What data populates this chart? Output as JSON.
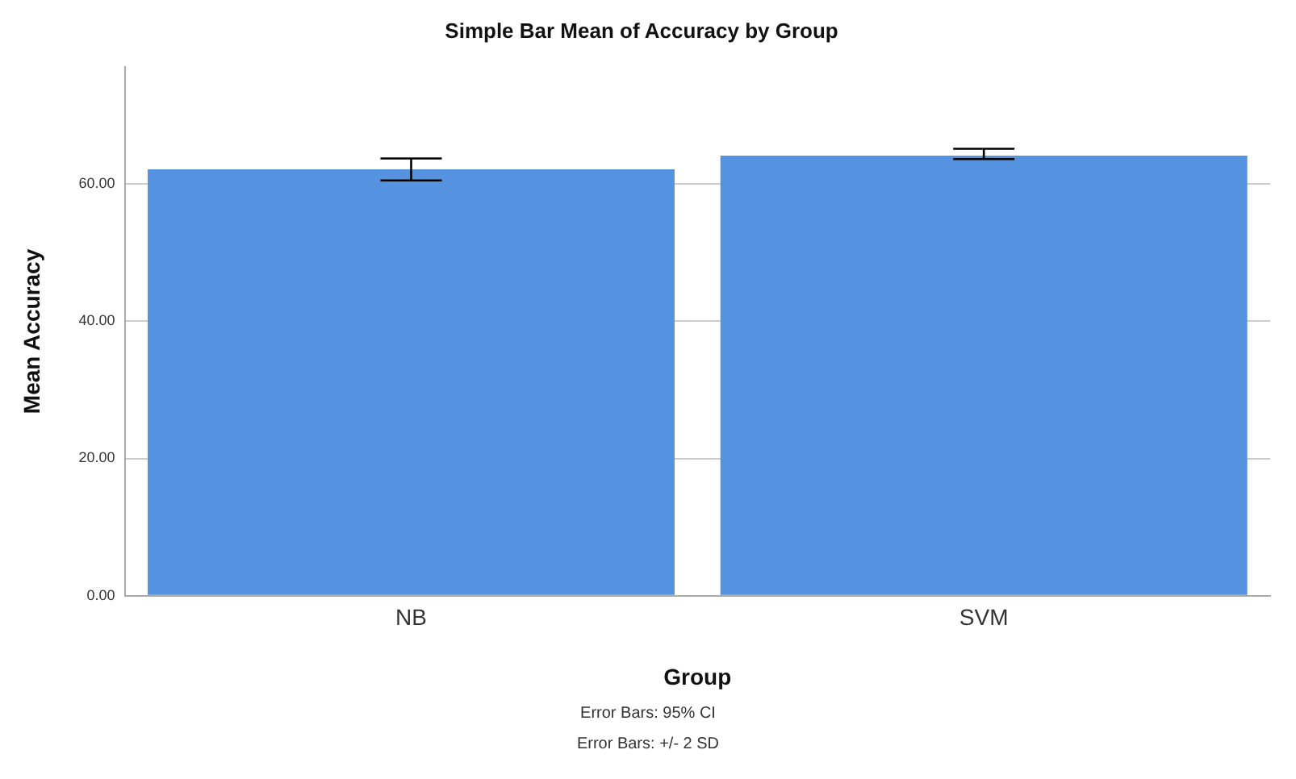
{
  "chart_data": {
    "type": "bar",
    "title": "Simple Bar Mean of Accuracy by Group",
    "xlabel": "Group",
    "ylabel": "Mean Accuracy",
    "categories": [
      "NB",
      "SVM"
    ],
    "values": [
      62.1,
      64.1
    ],
    "errors": [
      [
        60.5,
        63.7
      ],
      [
        63.6,
        65.1
      ]
    ],
    "color": "#5592e0",
    "ylim": [
      0,
      77
    ],
    "yticks": [
      {
        "value": 0,
        "label": "0.00"
      },
      {
        "value": 20,
        "label": "20.00"
      },
      {
        "value": 40,
        "label": "40.00"
      },
      {
        "value": 60,
        "label": "60.00"
      }
    ],
    "grid": "y",
    "annotations": [
      "Error Bars: 95% CI",
      "Error Bars: +/- 2 SD"
    ]
  }
}
